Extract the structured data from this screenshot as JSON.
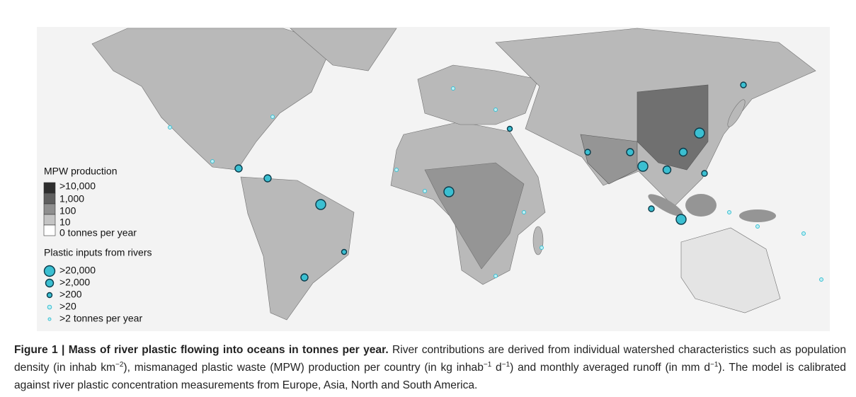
{
  "figure": {
    "legend": {
      "mpw_title": "MPW production",
      "mpw_levels": [
        ">10,000",
        "1,000",
        "100",
        "10",
        "0 tonnes per year"
      ],
      "rivers_title": "Plastic inputs from rivers",
      "river_levels": [
        ">20,000",
        ">2,000",
        ">200",
        ">20",
        ">2 tonnes per year"
      ]
    },
    "caption": {
      "label": "Figure 1 | Mass of river plastic flowing into oceans in tonnes per year.",
      "segments": [
        {
          "text": " River contributions are derived from individual watershed characteristics such as population density (in inhab km"
        },
        {
          "sup": "−2"
        },
        {
          "text": "), mismanaged plastic waste (MPW) production per country (in kg inhab"
        },
        {
          "sup": "−1"
        },
        {
          "text": " d"
        },
        {
          "sup": "−1"
        },
        {
          "text": ") and monthly averaged runoff (in mm d"
        },
        {
          "sup": "−1"
        },
        {
          "text": "). The model is calibrated against river plastic concentration measurements from Europe, Asia, North and South America."
        }
      ]
    }
  }
}
